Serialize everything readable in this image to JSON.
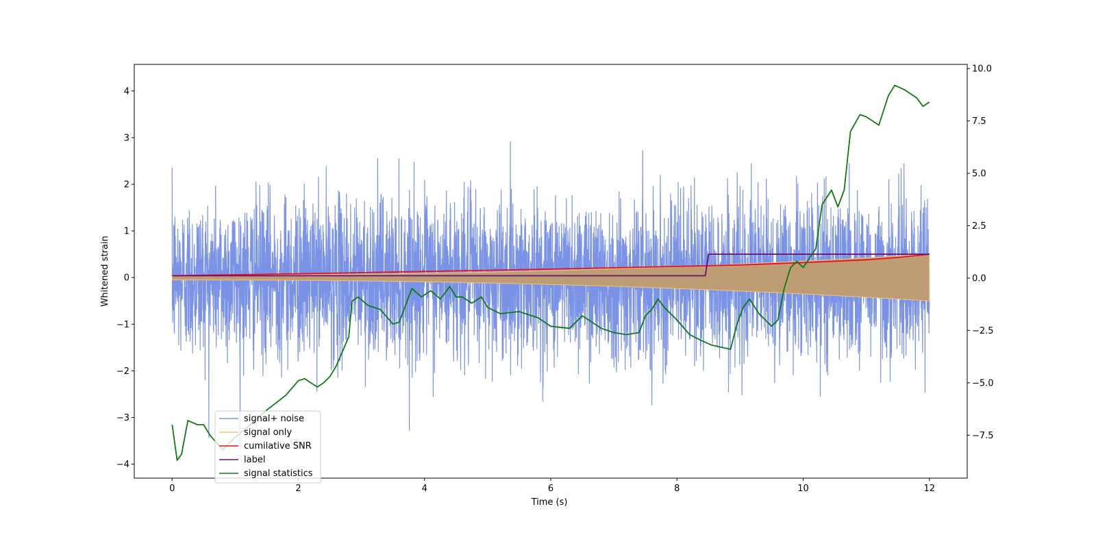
{
  "chart_data": {
    "type": "line",
    "title": "",
    "xlabel": "Time (s)",
    "ylabel": "Whitened strain",
    "xlim": [
      -0.6,
      12.6
    ],
    "ylim": [
      -4.3,
      4.57
    ],
    "y2lim": [
      -9.55,
      10.2
    ],
    "xticks": [
      0,
      2,
      4,
      6,
      8,
      10,
      12
    ],
    "xtick_labels": [
      "0",
      "2",
      "4",
      "6",
      "8",
      "10",
      "12"
    ],
    "yticks": [
      -4,
      -3,
      -2,
      -1,
      0,
      1,
      2,
      3,
      4
    ],
    "ytick_labels": [
      "−4",
      "−3",
      "−2",
      "−1",
      "0",
      "1",
      "2",
      "3",
      "4"
    ],
    "y2ticks": [
      -7.5,
      -5.0,
      -2.5,
      0.0,
      2.5,
      5.0,
      7.5,
      10.0
    ],
    "y2tick_labels": [
      "−7.5",
      "−5.0",
      "−2.5",
      "0.0",
      "2.5",
      "5.0",
      "7.5",
      "10.0"
    ],
    "noise_sigma": 0.85,
    "legend_position": "lower-left",
    "series": [
      {
        "name": "signal+ noise",
        "color": "#7b93e6",
        "axis": "left",
        "kind": "noise",
        "duration": 12,
        "amplitude_sigma": 0.85
      },
      {
        "name": "signal only",
        "color": "#f5c27a",
        "axis": "left",
        "kind": "chirp_envelope",
        "envelope_start": 0.05,
        "envelope_end": 0.5
      },
      {
        "name": "cumilative SNR",
        "color": "#e8111b",
        "axis": "left",
        "x": [
          0,
          2,
          4,
          6,
          8,
          9,
          10,
          11,
          11.5,
          12
        ],
        "values": [
          0.04,
          0.08,
          0.13,
          0.18,
          0.24,
          0.27,
          0.32,
          0.38,
          0.43,
          0.5
        ]
      },
      {
        "name": "label",
        "color": "#6a0d73",
        "axis": "left",
        "x": [
          0,
          8.45,
          8.5,
          12
        ],
        "values": [
          0.04,
          0.04,
          0.5,
          0.5
        ]
      },
      {
        "name": "signal statistics",
        "color": "#0d7a0d",
        "axis": "right",
        "x": [
          0,
          0.08,
          0.15,
          0.25,
          0.4,
          0.5,
          0.6,
          0.8,
          1.0,
          1.2,
          1.5,
          1.8,
          2.0,
          2.1,
          2.2,
          2.3,
          2.4,
          2.5,
          2.6,
          2.7,
          2.8,
          2.85,
          2.95,
          3.1,
          3.3,
          3.5,
          3.6,
          3.8,
          3.95,
          4.1,
          4.25,
          4.4,
          4.5,
          4.6,
          4.75,
          4.9,
          5.0,
          5.2,
          5.5,
          5.8,
          6.0,
          6.3,
          6.5,
          6.8,
          7.0,
          7.2,
          7.4,
          7.5,
          7.6,
          7.7,
          7.8,
          8.0,
          8.2,
          8.4,
          8.55,
          8.7,
          8.85,
          8.95,
          9.05,
          9.15,
          9.3,
          9.5,
          9.6,
          9.7,
          9.8,
          9.9,
          10.0,
          10.2,
          10.3,
          10.45,
          10.55,
          10.65,
          10.75,
          10.9,
          11.0,
          11.2,
          11.35,
          11.45,
          11.6,
          11.8,
          11.9,
          12.0
        ],
        "values": [
          -7.0,
          -8.7,
          -8.4,
          -6.8,
          -7.0,
          -7.0,
          -7.5,
          -8.2,
          -7.6,
          -7.1,
          -6.3,
          -5.6,
          -4.9,
          -4.8,
          -5.0,
          -5.2,
          -5.0,
          -4.7,
          -4.2,
          -3.5,
          -2.8,
          -1.1,
          -0.9,
          -1.3,
          -1.5,
          -2.2,
          -2.1,
          -0.5,
          -0.9,
          -0.6,
          -1.0,
          -0.4,
          -0.9,
          -0.9,
          -1.2,
          -0.9,
          -1.4,
          -1.7,
          -1.6,
          -1.9,
          -2.3,
          -2.4,
          -1.8,
          -2.4,
          -2.6,
          -2.7,
          -2.6,
          -1.8,
          -1.5,
          -1.0,
          -1.4,
          -2.0,
          -2.7,
          -3.0,
          -3.2,
          -3.3,
          -3.4,
          -2.2,
          -1.4,
          -1.0,
          -1.7,
          -2.3,
          -2.0,
          -0.5,
          0.5,
          0.8,
          0.5,
          1.4,
          3.5,
          4.2,
          3.4,
          4.2,
          7.0,
          7.8,
          7.7,
          7.3,
          8.7,
          9.2,
          9.0,
          8.6,
          8.2,
          8.4
        ]
      }
    ]
  }
}
